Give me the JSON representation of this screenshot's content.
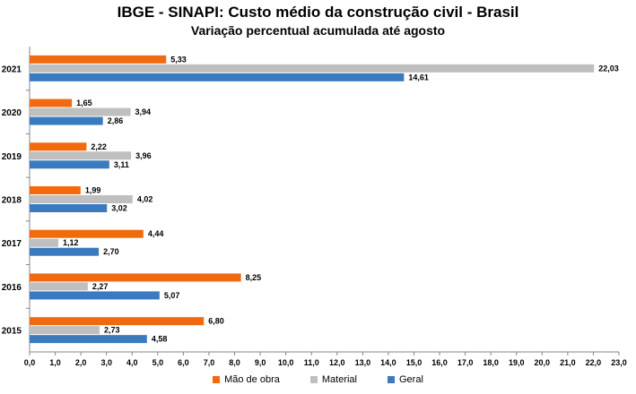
{
  "chart_data": {
    "type": "bar",
    "orientation": "horizontal",
    "title": "IBGE - SINAPI: Custo médio da construção civil - Brasil",
    "subtitle": "Variação percentual acumulada até agosto",
    "categories": [
      "2021",
      "2020",
      "2019",
      "2018",
      "2017",
      "2016",
      "2015"
    ],
    "series": [
      {
        "name": "Mão de obra",
        "color": "#f26a10",
        "values": [
          5.33,
          1.65,
          2.22,
          1.99,
          4.44,
          8.25,
          6.8
        ],
        "labels": [
          "5,33",
          "1,65",
          "2,22",
          "1,99",
          "4,44",
          "8,25",
          "6,80"
        ]
      },
      {
        "name": "Material",
        "color": "#bfbfbf",
        "values": [
          22.03,
          3.94,
          3.96,
          4.02,
          1.12,
          2.27,
          2.73
        ],
        "labels": [
          "22,03",
          "3,94",
          "3,96",
          "4,02",
          "1,12",
          "2,27",
          "2,73"
        ]
      },
      {
        "name": "Geral",
        "color": "#3a7bbf",
        "values": [
          14.61,
          2.86,
          3.11,
          3.02,
          2.7,
          5.07,
          4.58
        ],
        "labels": [
          "14,61",
          "2,86",
          "3,11",
          "3,02",
          "2,70",
          "5,07",
          "4,58"
        ]
      }
    ],
    "xlim": [
      0,
      23
    ],
    "xticks": [
      "0,0",
      "1,0",
      "2,0",
      "3,0",
      "4,0",
      "5,0",
      "6,0",
      "7,0",
      "8,0",
      "9,0",
      "10,0",
      "11,0",
      "12,0",
      "13,0",
      "14,0",
      "15,0",
      "16,0",
      "17,0",
      "18,0",
      "19,0",
      "20,0",
      "21,0",
      "22,0",
      "23,0"
    ],
    "xlabel": "",
    "ylabel": "",
    "grid": false,
    "legend_position": "bottom"
  }
}
